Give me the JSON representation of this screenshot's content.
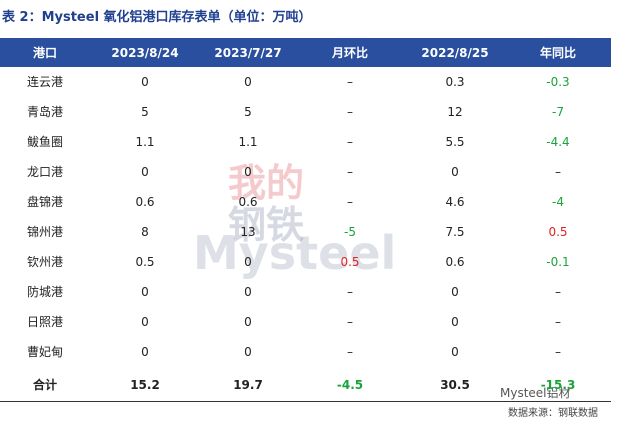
{
  "title": "表 2：Mysteel 氧化铝港口库存表单（单位：万吨）",
  "table": {
    "header": [
      "港口",
      "2023/8/24",
      "2023/7/27",
      "月环比",
      "2022/8/25",
      "年同比"
    ],
    "rows": [
      [
        "连云港",
        "0",
        "0",
        "–",
        "0.3",
        "-0.3"
      ],
      [
        "青岛港",
        "5",
        "5",
        "–",
        "12",
        "-7"
      ],
      [
        "鲅鱼圈",
        "1.1",
        "1.1",
        "–",
        "5.5",
        "-4.4"
      ],
      [
        "龙口港",
        "0",
        "0",
        "–",
        "0",
        "–"
      ],
      [
        "盘锦港",
        "0.6",
        "0.6",
        "–",
        "4.6",
        "-4"
      ],
      [
        "锦州港",
        "8",
        "13",
        "-5",
        "7.5",
        "0.5"
      ],
      [
        "钦州港",
        "0.5",
        "0",
        "0.5",
        "0.6",
        "-0.1"
      ],
      [
        "防城港",
        "0",
        "0",
        "–",
        "0",
        "–"
      ],
      [
        "日照港",
        "0",
        "0",
        "–",
        "0",
        "–"
      ],
      [
        "曹妃甸",
        "0",
        "0",
        "–",
        "0",
        "–"
      ]
    ],
    "total": [
      "合计",
      "15.2",
      "19.7",
      "-4.5",
      "30.5",
      "-15.3"
    ]
  },
  "watermark": {
    "top": "我的",
    "middle": "钢铁",
    "brand": "Mysteel"
  },
  "footer": {
    "brand": "Mysteel铝材",
    "source": "数据来源：钢联数据"
  }
}
